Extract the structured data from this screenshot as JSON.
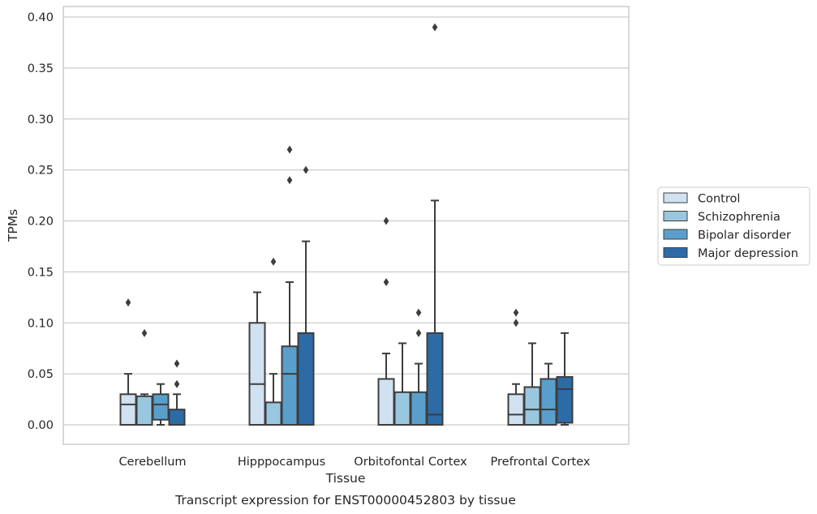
{
  "caption": "Transcript expression for ENST00000452803 by tissue",
  "chart_data": {
    "type": "box",
    "xlabel": "Tissue",
    "ylabel": "TPMs",
    "ylim": [
      -0.018,
      0.41
    ],
    "yticks": [
      "0.00",
      "0.05",
      "0.10",
      "0.15",
      "0.20",
      "0.25",
      "0.30",
      "0.35",
      "0.40"
    ],
    "grid": "horizontal",
    "legend_placement": "right",
    "categories": [
      "Cerebellum",
      "Hipppocampus",
      "Orbitofontal Cortex",
      "Prefrontal Cortex"
    ],
    "series": [
      {
        "name": "Control",
        "color": "#d0e1f1",
        "boxes": [
          {
            "q1": 0.0,
            "median": 0.02,
            "q3": 0.03,
            "whisker_low": 0.0,
            "whisker_high": 0.05,
            "outliers": [
              0.12
            ]
          },
          {
            "q1": 0.0,
            "median": 0.04,
            "q3": 0.1,
            "whisker_low": 0.0,
            "whisker_high": 0.13,
            "outliers": []
          },
          {
            "q1": 0.0,
            "median": 0.0,
            "q3": 0.045,
            "whisker_low": 0.0,
            "whisker_high": 0.07,
            "outliers": [
              0.14,
              0.2
            ]
          },
          {
            "q1": 0.0,
            "median": 0.01,
            "q3": 0.03,
            "whisker_low": 0.0,
            "whisker_high": 0.04,
            "outliers": [
              0.1,
              0.11
            ]
          }
        ]
      },
      {
        "name": "Schizophrenia",
        "color": "#9ac7e0",
        "boxes": [
          {
            "q1": 0.0,
            "median": 0.0,
            "q3": 0.028,
            "whisker_low": 0.0,
            "whisker_high": 0.03,
            "outliers": [
              0.09
            ]
          },
          {
            "q1": 0.0,
            "median": 0.0,
            "q3": 0.022,
            "whisker_low": 0.0,
            "whisker_high": 0.05,
            "outliers": [
              0.16
            ]
          },
          {
            "q1": 0.0,
            "median": 0.0,
            "q3": 0.032,
            "whisker_low": 0.0,
            "whisker_high": 0.08,
            "outliers": []
          },
          {
            "q1": 0.0,
            "median": 0.015,
            "q3": 0.037,
            "whisker_low": 0.0,
            "whisker_high": 0.08,
            "outliers": []
          }
        ]
      },
      {
        "name": "Bipolar disorder",
        "color": "#5a9fcb",
        "boxes": [
          {
            "q1": 0.005,
            "median": 0.02,
            "q3": 0.03,
            "whisker_low": 0.0,
            "whisker_high": 0.04,
            "outliers": []
          },
          {
            "q1": 0.0,
            "median": 0.05,
            "q3": 0.077,
            "whisker_low": 0.0,
            "whisker_high": 0.14,
            "outliers": [
              0.24,
              0.27
            ]
          },
          {
            "q1": 0.0,
            "median": 0.0,
            "q3": 0.032,
            "whisker_low": 0.0,
            "whisker_high": 0.06,
            "outliers": [
              0.09,
              0.11
            ]
          },
          {
            "q1": 0.0,
            "median": 0.015,
            "q3": 0.045,
            "whisker_low": 0.0,
            "whisker_high": 0.06,
            "outliers": []
          }
        ]
      },
      {
        "name": "Major depression",
        "color": "#2c6ba6",
        "boxes": [
          {
            "q1": 0.0,
            "median": 0.0,
            "q3": 0.015,
            "whisker_low": 0.0,
            "whisker_high": 0.03,
            "outliers": [
              0.04,
              0.06
            ]
          },
          {
            "q1": 0.0,
            "median": 0.0,
            "q3": 0.09,
            "whisker_low": 0.0,
            "whisker_high": 0.18,
            "outliers": [
              0.25
            ]
          },
          {
            "q1": 0.0,
            "median": 0.01,
            "q3": 0.09,
            "whisker_low": 0.0,
            "whisker_high": 0.22,
            "outliers": [
              0.39
            ]
          },
          {
            "q1": 0.002,
            "median": 0.035,
            "q3": 0.047,
            "whisker_low": 0.0,
            "whisker_high": 0.09,
            "outliers": []
          }
        ]
      }
    ]
  }
}
